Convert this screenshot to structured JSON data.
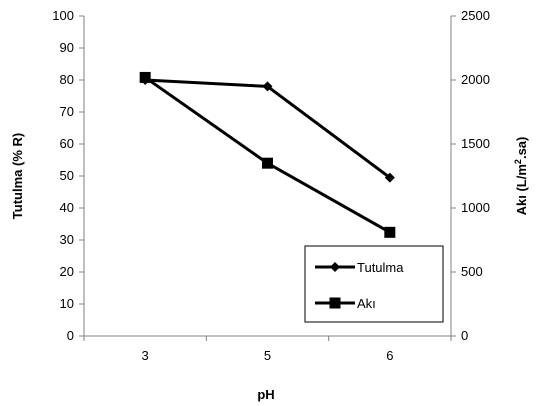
{
  "chart_data": {
    "type": "line",
    "categories": [
      "3",
      "5",
      "6"
    ],
    "xlabel": "pH",
    "ylabel_left": "Tutulma (% R)",
    "ylabel_right_prefix": "Akı (L/m",
    "ylabel_right_sup": "2",
    "ylabel_right_suffix": ".sa)",
    "y_left": {
      "min": 0,
      "max": 100,
      "ticks": [
        "0",
        "10",
        "20",
        "30",
        "40",
        "50",
        "60",
        "70",
        "80",
        "90",
        "100"
      ]
    },
    "y_right": {
      "min": 0,
      "max": 2500,
      "ticks": [
        "0",
        "500",
        "1000",
        "1500",
        "2000",
        "2500"
      ]
    },
    "grid": false,
    "legend_position": "bottom-right",
    "series": [
      {
        "name": "Tutulma",
        "axis": "left",
        "marker": "diamond",
        "color": "#000000",
        "values": [
          80,
          78,
          49.5
        ]
      },
      {
        "name": "Akı",
        "axis": "right",
        "marker": "square",
        "color": "#000000",
        "values": [
          2020,
          1350,
          810
        ]
      }
    ]
  }
}
